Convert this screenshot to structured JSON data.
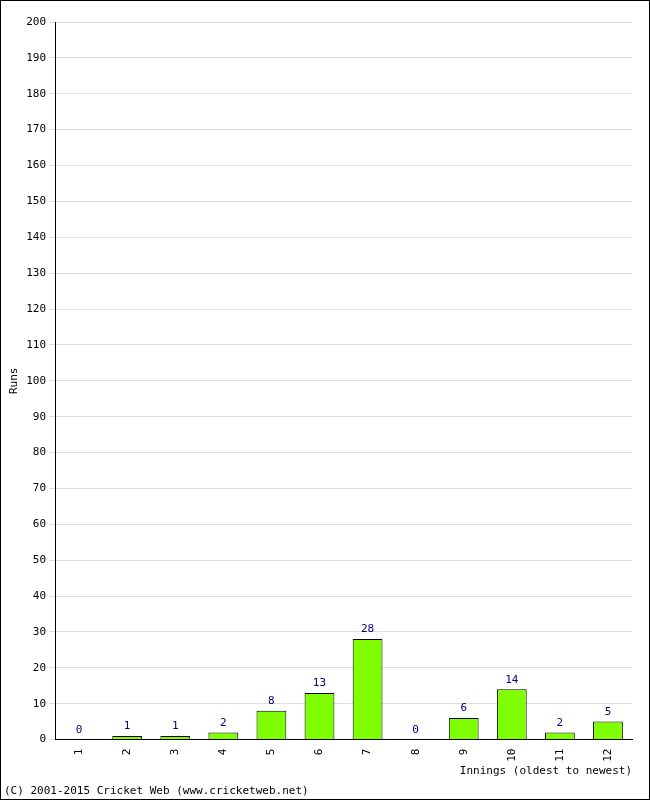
{
  "chart_data": {
    "type": "bar",
    "y_label": "Runs",
    "x_label": "Innings (oldest to newest)",
    "annotations": [
      "(C) 2001-2015 Cricket Web (www.cricketweb.net)"
    ],
    "categories": [
      "1",
      "2",
      "3",
      "4",
      "5",
      "6",
      "7",
      "8",
      "9",
      "10",
      "11",
      "12"
    ],
    "values": [
      0,
      1,
      1,
      2,
      8,
      13,
      28,
      0,
      6,
      14,
      2,
      5
    ],
    "color": "#80ff00",
    "ylim": [
      0,
      200
    ],
    "yticks": [
      0,
      10,
      20,
      30,
      40,
      50,
      60,
      70,
      80,
      90,
      100,
      110,
      120,
      130,
      140,
      150,
      160,
      170,
      180,
      190,
      200
    ],
    "grid": true,
    "data_labels": true
  }
}
